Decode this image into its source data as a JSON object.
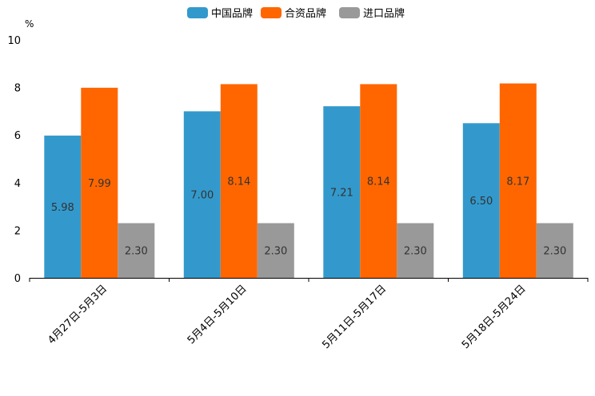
{
  "chart_data": {
    "type": "bar",
    "title": "",
    "unit_label": "%",
    "xlabel": "",
    "ylabel": "%",
    "ylim": [
      0,
      10
    ],
    "yticks": [
      0,
      2,
      4,
      6,
      8,
      10
    ],
    "legend_position": "top-center",
    "grid": false,
    "categories": [
      "4月27日-5月3日",
      "5月4日-5月10日",
      "5月11日-5月17日",
      "5月18日-5月24日"
    ],
    "series": [
      {
        "name": "中国品牌",
        "color": "#3399cc",
        "values": [
          5.98,
          7.0,
          7.21,
          6.5
        ],
        "labels": [
          "5.98",
          "7.00",
          "7.21",
          "6.50"
        ]
      },
      {
        "name": "合资品牌",
        "color": "#ff6600",
        "values": [
          7.99,
          8.14,
          8.14,
          8.17
        ],
        "labels": [
          "7.99",
          "8.14",
          "8.14",
          "8.17"
        ]
      },
      {
        "name": "进口品牌",
        "color": "#999999",
        "values": [
          2.3,
          2.3,
          2.3,
          2.3
        ],
        "labels": [
          "2.30",
          "2.30",
          "2.30",
          "2.30"
        ]
      }
    ]
  }
}
